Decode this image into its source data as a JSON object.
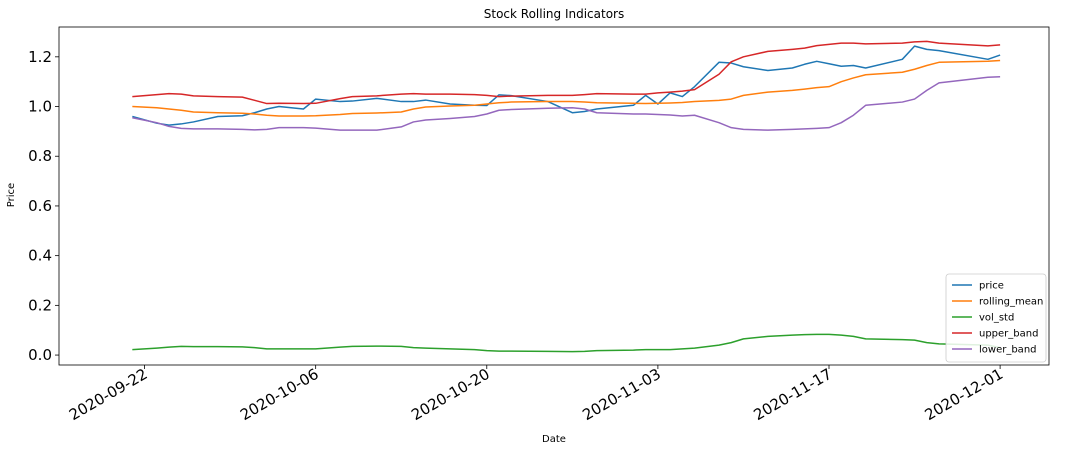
{
  "chart_data": {
    "type": "line",
    "title": "Stock Rolling Indicators",
    "xlabel": "Date",
    "ylabel": "Price",
    "x_range": [
      "2020-09-15",
      "2020-12-05"
    ],
    "ylim": [
      -0.04,
      1.32
    ],
    "x_ticks": [
      "2020-09-22",
      "2020-10-06",
      "2020-10-20",
      "2020-11-03",
      "2020-11-17",
      "2020-12-01"
    ],
    "y_ticks": [
      0.0,
      0.2,
      0.4,
      0.6,
      0.8,
      1.0,
      1.2
    ],
    "y_tick_labels": [
      "0.0",
      "0.2",
      "0.4",
      "0.6",
      "0.8",
      "1.0",
      "1.2"
    ],
    "grid": false,
    "legend_position": "bottom-right",
    "x": [
      "2020-09-21",
      "2020-09-23",
      "2020-09-24",
      "2020-09-25",
      "2020-09-26",
      "2020-09-28",
      "2020-09-30",
      "2020-10-01",
      "2020-10-02",
      "2020-10-03",
      "2020-10-05",
      "2020-10-06",
      "2020-10-08",
      "2020-10-09",
      "2020-10-11",
      "2020-10-13",
      "2020-10-14",
      "2020-10-15",
      "2020-10-17",
      "2020-10-19",
      "2020-10-20",
      "2020-10-21",
      "2020-10-22",
      "2020-10-25",
      "2020-10-27",
      "2020-10-28",
      "2020-10-29",
      "2020-11-01",
      "2020-11-02",
      "2020-11-03",
      "2020-11-04",
      "2020-11-05",
      "2020-11-06",
      "2020-11-08",
      "2020-11-09",
      "2020-11-10",
      "2020-11-12",
      "2020-11-14",
      "2020-11-15",
      "2020-11-16",
      "2020-11-17",
      "2020-11-18",
      "2020-11-19",
      "2020-11-20",
      "2020-11-23",
      "2020-11-24",
      "2020-11-25",
      "2020-11-26",
      "2020-11-30",
      "2020-12-01"
    ],
    "series": [
      {
        "name": "price",
        "color": "#1f77b4",
        "values": [
          0.96,
          0.933,
          0.925,
          0.93,
          0.938,
          0.96,
          0.963,
          0.975,
          0.99,
          1.0,
          0.99,
          1.03,
          1.02,
          1.022,
          1.033,
          1.02,
          1.02,
          1.026,
          1.01,
          1.005,
          1.004,
          1.047,
          1.044,
          1.02,
          0.975,
          0.98,
          0.99,
          1.005,
          1.045,
          1.01,
          1.055,
          1.04,
          1.08,
          1.178,
          1.175,
          1.16,
          1.145,
          1.155,
          1.17,
          1.182,
          1.172,
          1.162,
          1.165,
          1.155,
          1.19,
          1.243,
          1.23,
          1.225,
          1.19,
          1.207
        ]
      },
      {
        "name": "rolling_mean",
        "color": "#ff7f0e",
        "values": [
          1.0,
          0.995,
          0.99,
          0.985,
          0.978,
          0.975,
          0.973,
          0.97,
          0.965,
          0.962,
          0.962,
          0.963,
          0.968,
          0.972,
          0.974,
          0.978,
          0.99,
          0.998,
          1.002,
          1.005,
          1.01,
          1.015,
          1.018,
          1.02,
          1.02,
          1.018,
          1.015,
          1.013,
          1.012,
          1.013,
          1.014,
          1.016,
          1.02,
          1.025,
          1.03,
          1.045,
          1.058,
          1.065,
          1.07,
          1.076,
          1.08,
          1.1,
          1.115,
          1.128,
          1.138,
          1.15,
          1.165,
          1.178,
          1.182,
          1.185
        ]
      },
      {
        "name": "vol_std",
        "color": "#2ca02c",
        "values": [
          0.022,
          0.028,
          0.032,
          0.035,
          0.034,
          0.034,
          0.033,
          0.03,
          0.025,
          0.025,
          0.025,
          0.025,
          0.032,
          0.035,
          0.036,
          0.035,
          0.03,
          0.028,
          0.025,
          0.022,
          0.018,
          0.016,
          0.016,
          0.015,
          0.014,
          0.015,
          0.018,
          0.02,
          0.022,
          0.022,
          0.022,
          0.025,
          0.028,
          0.04,
          0.05,
          0.065,
          0.075,
          0.08,
          0.082,
          0.083,
          0.083,
          0.08,
          0.075,
          0.065,
          0.062,
          0.06,
          0.05,
          0.045,
          0.04,
          0.03
        ]
      },
      {
        "name": "upper_band",
        "color": "#d62728",
        "values": [
          1.04,
          1.048,
          1.052,
          1.05,
          1.043,
          1.04,
          1.038,
          1.025,
          1.012,
          1.013,
          1.012,
          1.013,
          1.032,
          1.04,
          1.043,
          1.05,
          1.052,
          1.05,
          1.05,
          1.048,
          1.045,
          1.04,
          1.042,
          1.045,
          1.045,
          1.048,
          1.052,
          1.05,
          1.05,
          1.055,
          1.058,
          1.062,
          1.068,
          1.13,
          1.18,
          1.2,
          1.222,
          1.23,
          1.235,
          1.245,
          1.25,
          1.255,
          1.255,
          1.252,
          1.255,
          1.26,
          1.262,
          1.255,
          1.244,
          1.248
        ]
      },
      {
        "name": "lower_band",
        "color": "#9467bd",
        "values": [
          0.955,
          0.935,
          0.92,
          0.912,
          0.91,
          0.91,
          0.908,
          0.906,
          0.908,
          0.915,
          0.915,
          0.913,
          0.905,
          0.905,
          0.905,
          0.918,
          0.938,
          0.946,
          0.952,
          0.96,
          0.97,
          0.985,
          0.988,
          0.993,
          0.995,
          0.99,
          0.975,
          0.97,
          0.97,
          0.968,
          0.966,
          0.962,
          0.965,
          0.935,
          0.915,
          0.908,
          0.905,
          0.908,
          0.91,
          0.912,
          0.915,
          0.935,
          0.965,
          1.005,
          1.018,
          1.03,
          1.065,
          1.095,
          1.118,
          1.12
        ]
      }
    ]
  }
}
